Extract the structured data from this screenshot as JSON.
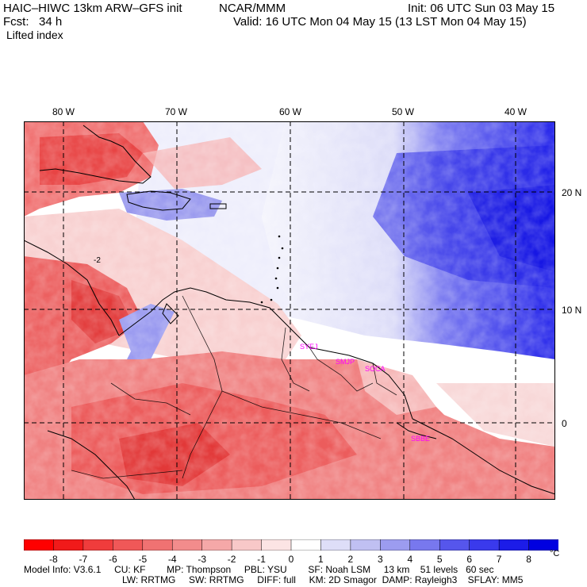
{
  "header": {
    "model_title": "HAIC–HIWC 13km ARW–GFS init",
    "org": "NCAR/MMM",
    "init": "Init: 06 UTC Sun 03 May 15",
    "fcst": "Fcst:   34 h",
    "valid": "Valid: 16 UTC Mon 04 May 15 (13 LST Mon 04 May 15)",
    "field": "Lifted index"
  },
  "map": {
    "lon_labels": [
      "80 W",
      "70 W",
      "60 W",
      "50 W",
      "40 W"
    ],
    "lat_labels": [
      "20 N",
      "10 N",
      "0"
    ],
    "contour_label": "-2",
    "stations": [
      "SYEJ",
      "SMJP",
      "SOCA",
      "SBBE"
    ],
    "colors": {
      "warm": "#e23030",
      "cool": "#1818e8",
      "neutral": "#ffffff",
      "station": "#ff00ff"
    }
  },
  "colorbar": {
    "ticks": [
      "-8",
      "-7",
      "-6",
      "-5",
      "-4",
      "-3",
      "-2",
      "-1",
      "0",
      "1",
      "2",
      "3",
      "4",
      "5",
      "6",
      "7",
      "8"
    ],
    "unit": "°C",
    "colors": [
      "#ff0000",
      "#f11a1a",
      "#f03c3c",
      "#f05858",
      "#f07272",
      "#f28c8c",
      "#f5a8a8",
      "#f8c8c8",
      "#fce4e4",
      "#ffffff",
      "#dedef8",
      "#c0c0f2",
      "#9c9cf0",
      "#7878ee",
      "#5656ec",
      "#3a3aec",
      "#1c1ce8",
      "#0000e0"
    ]
  },
  "footer": {
    "line1": "Model Info: V3.6.1     CU: KF        MP: Thompson     PBL: YSU        SF: Noah LSM     13 km    51 levels   60 sec",
    "line2": "LW: RRTMG     SW: RRTMG     DIFF: full     KM: 2D Smagor  DAMP: Rayleigh3    SFLAY: MM5"
  }
}
